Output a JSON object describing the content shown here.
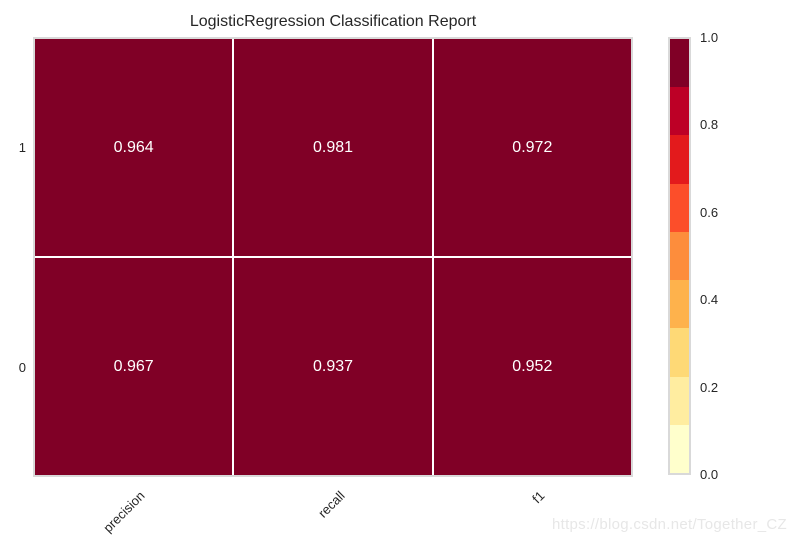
{
  "colors": {
    "cell": "#800026",
    "grid_line": "#ffffff",
    "frame_border": "#d9d9d9",
    "text": "#262626",
    "cell_text": "#ffffff",
    "watermark": "#e7e7e7"
  },
  "chart_data": {
    "type": "heatmap",
    "title": "LogisticRegression Classification Report",
    "columns": [
      "precision",
      "recall",
      "f1"
    ],
    "rows": [
      "1",
      "0"
    ],
    "values": [
      [
        0.964,
        0.981,
        0.972
      ],
      [
        0.967,
        0.937,
        0.952
      ]
    ],
    "colormap": "YlOrRd",
    "grid": false,
    "legend_position": "right",
    "colorbar": {
      "range": [
        0.0,
        1.0
      ],
      "ticks": [
        "1.0",
        "0.8",
        "0.6",
        "0.4",
        "0.2",
        "0.0"
      ],
      "segments": [
        "#800026",
        "#bd0026",
        "#e31a1c",
        "#fc4e2a",
        "#fd8d3c",
        "#feb24c",
        "#fed976",
        "#ffeda0",
        "#ffffcc"
      ]
    }
  },
  "watermark": "https://blog.csdn.net/Together_CZ"
}
